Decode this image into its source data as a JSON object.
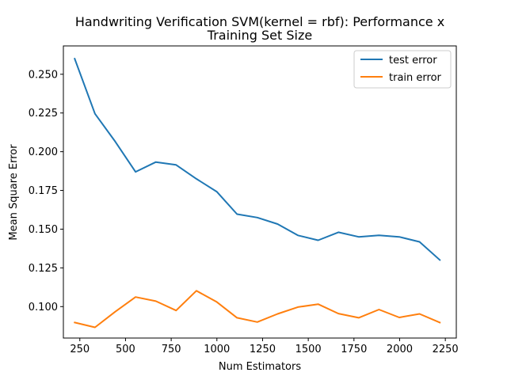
{
  "chart_data": {
    "type": "line",
    "title": "Handwriting Verification SVM(kernel = rbf): Performance x Training Set Size",
    "title_lines": [
      "Handwriting Verification SVM(kernel = rbf): Performance x",
      "Training Set Size"
    ],
    "xlabel": "Num Estimators",
    "ylabel": "Mean Square Error",
    "xlim": [
      160,
      2310
    ],
    "ylim": [
      0.0797,
      0.2683
    ],
    "xticks": [
      250,
      500,
      750,
      1000,
      1250,
      1500,
      1750,
      2000,
      2250
    ],
    "yticks": [
      0.1,
      0.125,
      0.15,
      0.175,
      0.2,
      0.225,
      0.25
    ],
    "xtick_labels": [
      "250",
      "500",
      "750",
      "1000",
      "1250",
      "1500",
      "1750",
      "2000",
      "2250"
    ],
    "ytick_labels": [
      "0.100",
      "0.125",
      "0.150",
      "0.175",
      "0.200",
      "0.225",
      "0.250"
    ],
    "grid": false,
    "legend_position": "top-right",
    "x": [
      222,
      333,
      444,
      555,
      666,
      777,
      888,
      999,
      1110,
      1221,
      1332,
      1443,
      1554,
      1665,
      1776,
      1887,
      1998,
      2109,
      2220
    ],
    "series": [
      {
        "name": "test error",
        "color": "#1f77b4",
        "values": [
          0.26,
          0.2245,
          0.2065,
          0.187,
          0.1933,
          0.1915,
          0.1825,
          0.1742,
          0.1597,
          0.1575,
          0.1533,
          0.146,
          0.1428,
          0.148,
          0.145,
          0.146,
          0.145,
          0.1418,
          0.1301
        ]
      },
      {
        "name": "train error",
        "color": "#ff7f0e",
        "values": [
          0.0897,
          0.0866,
          0.0967,
          0.1062,
          0.1035,
          0.0975,
          0.1102,
          0.103,
          0.0928,
          0.09,
          0.0953,
          0.0997,
          0.1016,
          0.0955,
          0.0928,
          0.0981,
          0.093,
          0.0953,
          0.0897
        ]
      }
    ]
  }
}
